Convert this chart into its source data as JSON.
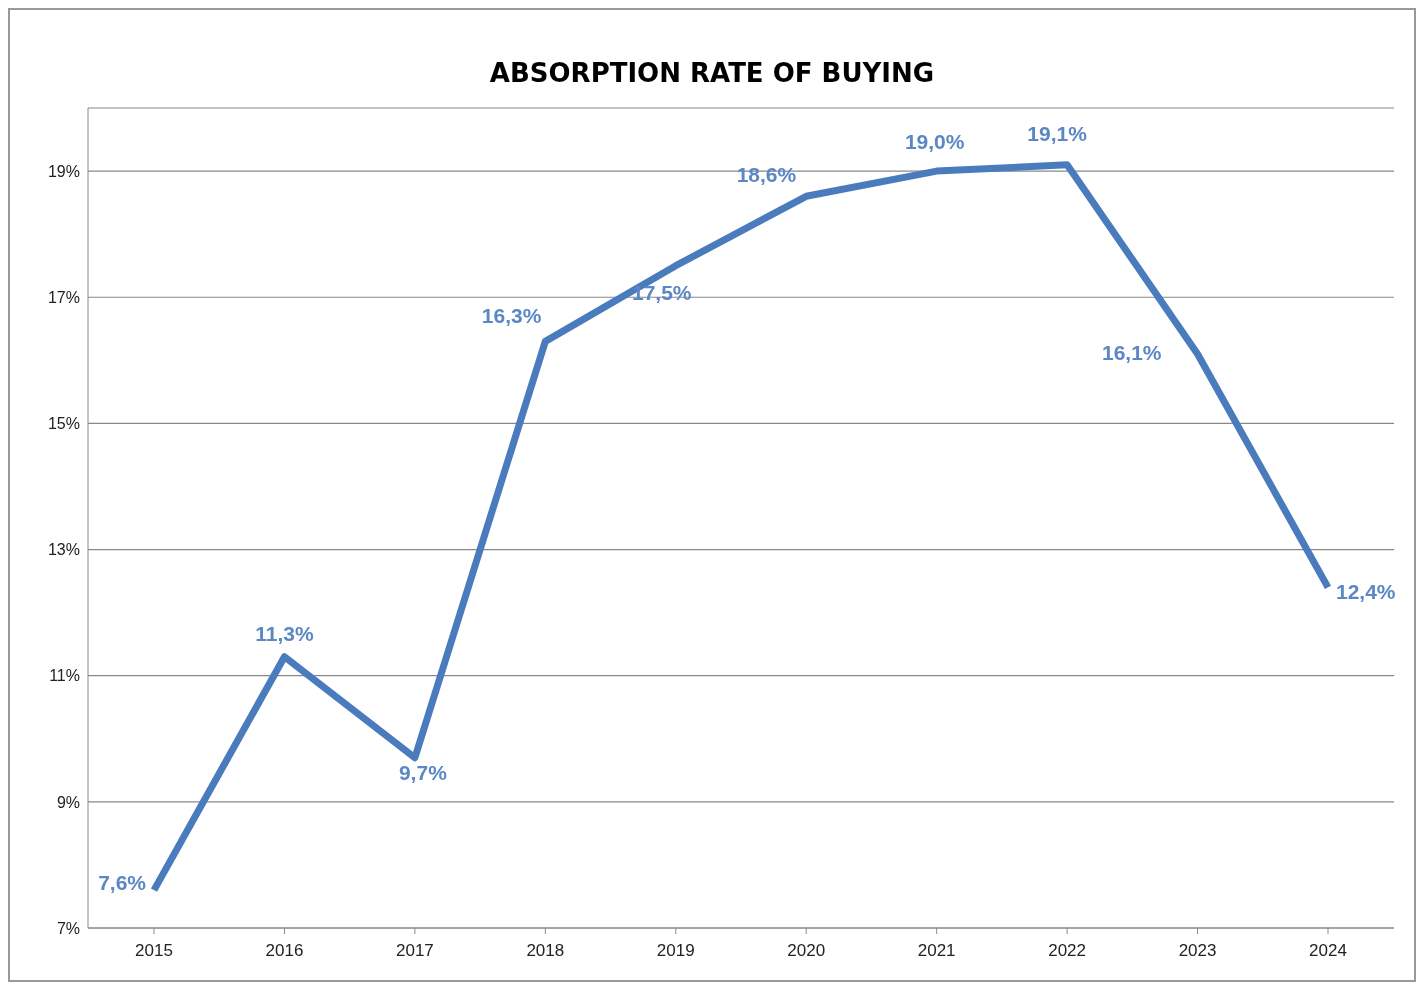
{
  "chart_data": {
    "type": "line",
    "title": "ABSORPTION RATE OF BUYING",
    "categories": [
      "2015",
      "2016",
      "2017",
      "2018",
      "2019",
      "2020",
      "2021",
      "2022",
      "2023",
      "2024"
    ],
    "series": [
      {
        "color": "#4a7bbd",
        "values": [
          7.6,
          11.3,
          9.7,
          16.3,
          17.5,
          18.6,
          19.0,
          19.1,
          16.1,
          12.4
        ],
        "value_labels": [
          "7,6%",
          "11,3%",
          "9,7%",
          "16,3%",
          "17,5%",
          "18,6%",
          "19,0%",
          "19,1%",
          "16,1%",
          "12,4%"
        ]
      }
    ],
    "ylim": [
      7,
      20
    ],
    "yticks": [
      {
        "value": 7,
        "label": "7%"
      },
      {
        "value": 9,
        "label": "9%"
      },
      {
        "value": 11,
        "label": "11%"
      },
      {
        "value": 13,
        "label": "13%"
      },
      {
        "value": 15,
        "label": "15%"
      },
      {
        "value": 17,
        "label": "17%"
      },
      {
        "value": 19,
        "label": "19%"
      }
    ],
    "grid": "y",
    "legend": false,
    "marker": "none",
    "line_style": "solid"
  }
}
